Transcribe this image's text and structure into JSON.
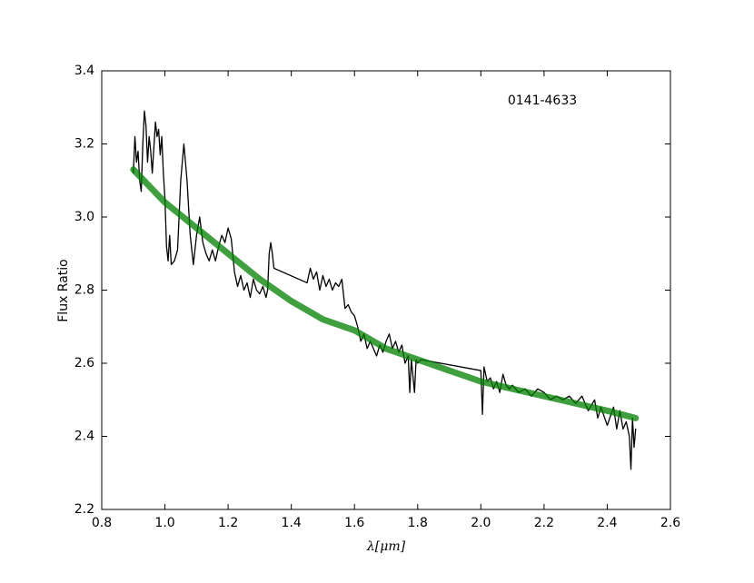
{
  "chart_data": {
    "type": "line",
    "annotation": "0141-4633",
    "xlabel": "λ[μm]",
    "ylabel": "Flux Ratio",
    "xlim": [
      0.8,
      2.6
    ],
    "ylim": [
      2.2,
      3.4
    ],
    "xticks": [
      0.8,
      {
        "value": 1,
        "label": "1.0"
      },
      1.2,
      1.4,
      1.6,
      1.8,
      {
        "value": 2,
        "label": "2.0"
      },
      2.2,
      2.4,
      2.6
    ],
    "yticks": [
      2.2,
      2.4,
      2.6,
      2.8,
      {
        "value": 3,
        "label": "3.0"
      },
      3.2,
      3.4
    ],
    "series": [
      {
        "color": "#000000",
        "x": [
          0.9,
          0.905,
          0.91,
          0.915,
          0.92,
          0.925,
          0.93,
          0.935,
          0.94,
          0.945,
          0.95,
          0.955,
          0.96,
          0.97,
          0.975,
          0.98,
          0.985,
          0.99,
          0.995,
          1.0,
          1.005,
          1.01,
          1.015,
          1.02,
          1.03,
          1.04,
          1.05,
          1.06,
          1.07,
          1.08,
          1.09,
          1.1,
          1.11,
          1.12,
          1.13,
          1.14,
          1.15,
          1.16,
          1.17,
          1.18,
          1.19,
          1.2,
          1.21,
          1.22,
          1.23,
          1.24,
          1.25,
          1.26,
          1.27,
          1.28,
          1.29,
          1.3,
          1.31,
          1.32,
          1.325,
          1.33,
          1.335,
          1.34,
          1.345,
          1.45,
          1.46,
          1.47,
          1.48,
          1.49,
          1.5,
          1.51,
          1.52,
          1.53,
          1.54,
          1.55,
          1.56,
          1.57,
          1.58,
          1.59,
          1.6,
          1.61,
          1.62,
          1.63,
          1.64,
          1.65,
          1.66,
          1.67,
          1.68,
          1.69,
          1.7,
          1.71,
          1.72,
          1.73,
          1.74,
          1.75,
          1.76,
          1.77,
          1.775,
          1.78,
          1.79,
          1.795,
          1.8,
          1.81,
          2.0,
          2.005,
          2.01,
          2.02,
          2.03,
          2.04,
          2.05,
          2.06,
          2.07,
          2.08,
          2.09,
          2.1,
          2.12,
          2.14,
          2.16,
          2.18,
          2.2,
          2.22,
          2.24,
          2.26,
          2.28,
          2.3,
          2.32,
          2.34,
          2.36,
          2.37,
          2.38,
          2.4,
          2.42,
          2.43,
          2.44,
          2.45,
          2.46,
          2.47,
          2.475,
          2.48,
          2.485,
          2.49
        ],
        "values": [
          3.12,
          3.22,
          3.15,
          3.18,
          3.1,
          3.07,
          3.2,
          3.29,
          3.25,
          3.15,
          3.22,
          3.18,
          3.12,
          3.26,
          3.22,
          3.24,
          3.17,
          3.22,
          3.12,
          3.05,
          2.92,
          2.88,
          2.95,
          2.87,
          2.88,
          2.91,
          3.1,
          3.2,
          3.1,
          2.95,
          2.87,
          2.95,
          3.0,
          2.93,
          2.9,
          2.88,
          2.91,
          2.88,
          2.92,
          2.95,
          2.93,
          2.97,
          2.94,
          2.85,
          2.81,
          2.84,
          2.8,
          2.82,
          2.78,
          2.83,
          2.8,
          2.79,
          2.81,
          2.78,
          2.8,
          2.9,
          2.93,
          2.9,
          2.86,
          2.82,
          2.86,
          2.83,
          2.85,
          2.8,
          2.84,
          2.81,
          2.83,
          2.8,
          2.82,
          2.81,
          2.83,
          2.75,
          2.76,
          2.74,
          2.73,
          2.7,
          2.66,
          2.68,
          2.64,
          2.66,
          2.64,
          2.62,
          2.65,
          2.63,
          2.66,
          2.68,
          2.64,
          2.66,
          2.63,
          2.65,
          2.6,
          2.62,
          2.52,
          2.61,
          2.52,
          2.61,
          2.6,
          2.61,
          2.58,
          2.46,
          2.59,
          2.55,
          2.56,
          2.53,
          2.55,
          2.52,
          2.57,
          2.54,
          2.53,
          2.54,
          2.52,
          2.53,
          2.51,
          2.53,
          2.52,
          2.5,
          2.51,
          2.5,
          2.51,
          2.49,
          2.51,
          2.47,
          2.5,
          2.45,
          2.48,
          2.43,
          2.48,
          2.42,
          2.47,
          2.42,
          2.44,
          2.4,
          2.31,
          2.45,
          2.37,
          2.42
        ]
      },
      {
        "color": "#008000",
        "x": [
          0.9,
          1.0,
          1.1,
          1.2,
          1.3,
          1.4,
          1.5,
          1.6,
          1.7,
          1.8,
          1.9,
          2.0,
          2.1,
          2.2,
          2.3,
          2.4,
          2.49
        ],
        "values": [
          3.13,
          3.04,
          2.97,
          2.9,
          2.83,
          2.77,
          2.72,
          2.69,
          2.64,
          2.61,
          2.58,
          2.55,
          2.53,
          2.51,
          2.49,
          2.47,
          2.45
        ]
      }
    ]
  }
}
